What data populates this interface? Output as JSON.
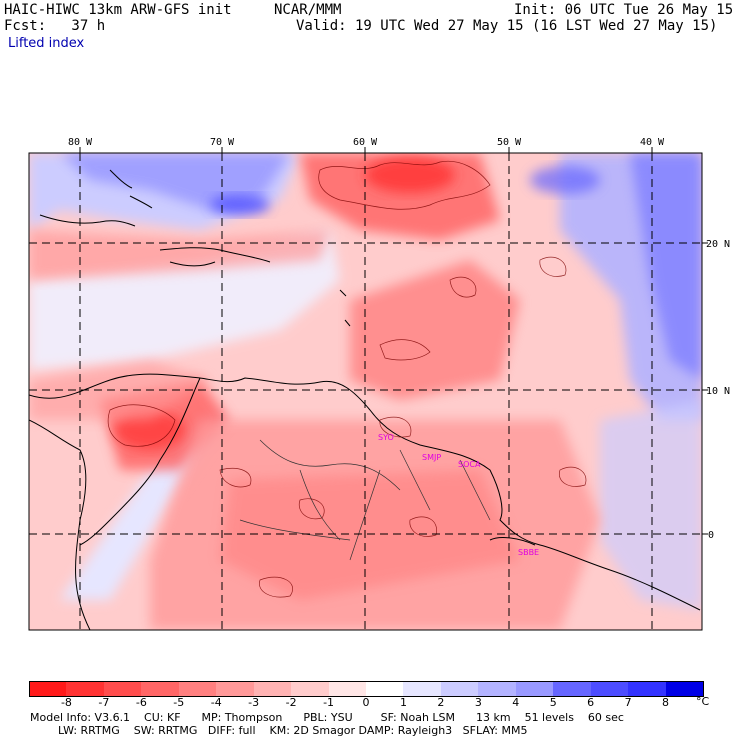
{
  "header": {
    "model_title": "HAIC-HIWC 13km ARW-GFS init",
    "org": "NCAR/MMM",
    "init": "Init: 06 UTC Tue 26 May 15",
    "fcst": "Fcst:   37 h",
    "valid": "Valid: 19 UTC Wed 27 May 15 (16 LST Wed 27 May 15)",
    "field": "Lifted index"
  },
  "axes": {
    "lon_labels": [
      "80 W",
      "70 W",
      "60 W",
      "50 W",
      "40 W"
    ],
    "lat_labels": [
      "20 N",
      "10 N",
      "0"
    ]
  },
  "stations": [
    "SYO",
    "SMJP",
    "SOCA",
    "SBBE"
  ],
  "colorbar": {
    "levels": [
      "-8",
      "-7",
      "-6",
      "-5",
      "-4",
      "-3",
      "-2",
      "-1",
      "0",
      "1",
      "2",
      "3",
      "4",
      "5",
      "6",
      "7",
      "8"
    ],
    "unit": "°C",
    "colors": [
      "#ff1a1a",
      "#ff3333",
      "#ff4d4d",
      "#ff6666",
      "#ff8080",
      "#ff9999",
      "#ffb3b3",
      "#ffcccc",
      "#ffe6e6",
      "#ffffff",
      "#e6e6ff",
      "#ccccff",
      "#b3b3ff",
      "#9999ff",
      "#6666ff",
      "#4d4dff",
      "#3333ff",
      "#0000e6"
    ]
  },
  "footer": {
    "line1": "Model Info: V3.6.1    CU: KF      MP: Thompson      PBL: YSU        SF: Noah LSM      13 km    51 levels    60 sec",
    "line2": "        LW: RRTMG    SW: RRTMG   DIFF: full    KM: 2D Smagor DAMP: Rayleigh3   SFLAY: MM5"
  }
}
